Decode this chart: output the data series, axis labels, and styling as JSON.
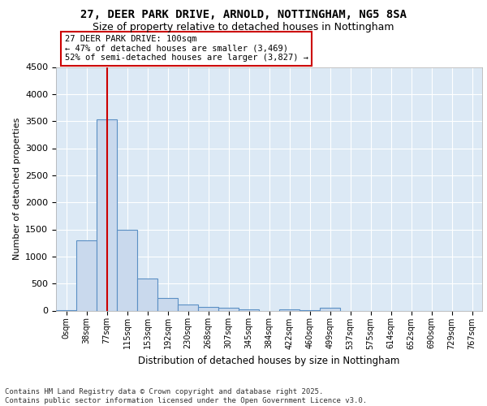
{
  "title": "27, DEER PARK DRIVE, ARNOLD, NOTTINGHAM, NG5 8SA",
  "subtitle": "Size of property relative to detached houses in Nottingham",
  "xlabel": "Distribution of detached houses by size in Nottingham",
  "ylabel": "Number of detached properties",
  "bin_labels": [
    "0sqm",
    "38sqm",
    "77sqm",
    "115sqm",
    "153sqm",
    "192sqm",
    "230sqm",
    "268sqm",
    "307sqm",
    "345sqm",
    "384sqm",
    "422sqm",
    "460sqm",
    "499sqm",
    "537sqm",
    "575sqm",
    "614sqm",
    "652sqm",
    "690sqm",
    "729sqm",
    "767sqm"
  ],
  "bar_values": [
    10,
    1295,
    3535,
    1490,
    590,
    240,
    120,
    75,
    50,
    30,
    0,
    30,
    5,
    50,
    0,
    0,
    0,
    0,
    0,
    0,
    0
  ],
  "bar_color": "#c9d9ed",
  "bar_edge_color": "#5b8fc4",
  "ylim": [
    0,
    4500
  ],
  "yticks": [
    0,
    500,
    1000,
    1500,
    2000,
    2500,
    3000,
    3500,
    4000,
    4500
  ],
  "vline_bin_index": 2,
  "vline_color": "#cc0000",
  "annotation_text": "27 DEER PARK DRIVE: 100sqm\n← 47% of detached houses are smaller (3,469)\n52% of semi-detached houses are larger (3,827) →",
  "annotation_box_color": "#cc0000",
  "footer_text": "Contains HM Land Registry data © Crown copyright and database right 2025.\nContains public sector information licensed under the Open Government Licence v3.0.",
  "plot_bg_color": "#dce9f5",
  "grid_color": "#ffffff"
}
